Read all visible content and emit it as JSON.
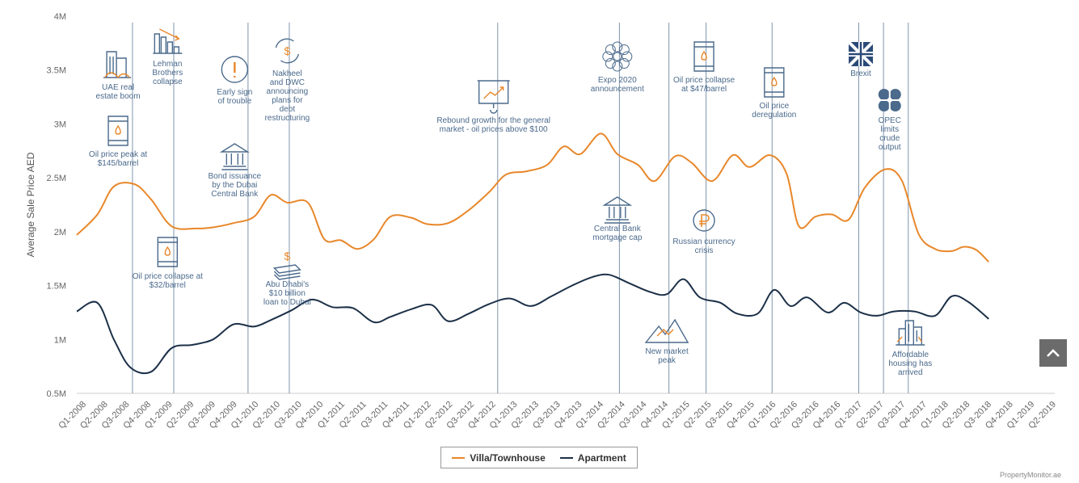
{
  "chart_data": {
    "type": "line",
    "ylabel": "Average Sale Price AED",
    "ylim": [
      500000,
      4000000
    ],
    "yticks": [
      {
        "value": 500000,
        "label": "0.5M"
      },
      {
        "value": 1000000,
        "label": "1M"
      },
      {
        "value": 1500000,
        "label": "1.5M"
      },
      {
        "value": 2000000,
        "label": "2M"
      },
      {
        "value": 2500000,
        "label": "2.5M"
      },
      {
        "value": 3000000,
        "label": "3M"
      },
      {
        "value": 3500000,
        "label": "3.5M"
      },
      {
        "value": 4000000,
        "label": "4M"
      }
    ],
    "categories": [
      "Q1-2008",
      "Q2-2008",
      "Q3-2008",
      "Q4-2008",
      "Q1-2009",
      "Q2-2009",
      "Q3-2009",
      "Q4-2009",
      "Q1-2010",
      "Q2-2010",
      "Q3-2010",
      "Q4-2010",
      "Q1-2011",
      "Q2-2011",
      "Q3-2011",
      "Q4-2011",
      "Q1-2012",
      "Q2-2012",
      "Q3-2012",
      "Q4-2012",
      "Q1-2013",
      "Q2-2013",
      "Q3-2013",
      "Q4-2013",
      "Q1-2014",
      "Q2-2014",
      "Q3-2014",
      "Q4-2014",
      "Q1-2015",
      "Q2-2015",
      "Q3-2015",
      "Q4-2015",
      "Q1-2016",
      "Q2-2016",
      "Q3-2016",
      "Q4-2016",
      "Q1-2017",
      "Q2-2017",
      "Q3-2017",
      "Q4-2017",
      "Q1-2018",
      "Q2-2018",
      "Q3-2018",
      "Q4-2018",
      "Q1-2019",
      "Q2-2019"
    ],
    "x_extent": [
      1,
      24.7
    ],
    "series": [
      {
        "name": "Villa/Townhouse",
        "color": "#e8872a",
        "points": [
          [
            1.0,
            1970000
          ],
          [
            1.5,
            2160000
          ],
          [
            1.9,
            2420000
          ],
          [
            2.4,
            2440000
          ],
          [
            2.8,
            2300000
          ],
          [
            3.3,
            2050000
          ],
          [
            3.9,
            2030000
          ],
          [
            4.3,
            2040000
          ],
          [
            4.8,
            2080000
          ],
          [
            5.3,
            2140000
          ],
          [
            5.7,
            2340000
          ],
          [
            6.1,
            2270000
          ],
          [
            6.6,
            2270000
          ],
          [
            7.0,
            1930000
          ],
          [
            7.4,
            1920000
          ],
          [
            7.8,
            1840000
          ],
          [
            8.2,
            1930000
          ],
          [
            8.6,
            2140000
          ],
          [
            9.1,
            2130000
          ],
          [
            9.5,
            2070000
          ],
          [
            10.0,
            2080000
          ],
          [
            10.5,
            2200000
          ],
          [
            11.0,
            2370000
          ],
          [
            11.4,
            2530000
          ],
          [
            11.9,
            2560000
          ],
          [
            12.4,
            2620000
          ],
          [
            12.8,
            2790000
          ],
          [
            13.2,
            2720000
          ],
          [
            13.7,
            2910000
          ],
          [
            14.1,
            2720000
          ],
          [
            14.6,
            2620000
          ],
          [
            15.0,
            2470000
          ],
          [
            15.5,
            2700000
          ],
          [
            15.9,
            2640000
          ],
          [
            16.4,
            2470000
          ],
          [
            16.9,
            2710000
          ],
          [
            17.3,
            2600000
          ],
          [
            17.8,
            2710000
          ],
          [
            18.2,
            2540000
          ],
          [
            18.5,
            2050000
          ],
          [
            18.9,
            2140000
          ],
          [
            19.3,
            2160000
          ],
          [
            19.7,
            2110000
          ],
          [
            20.1,
            2410000
          ],
          [
            20.6,
            2580000
          ],
          [
            21.0,
            2470000
          ],
          [
            21.4,
            1980000
          ],
          [
            21.8,
            1840000
          ],
          [
            22.2,
            1820000
          ],
          [
            22.5,
            1860000
          ],
          [
            22.8,
            1830000
          ],
          [
            23.1,
            1720000
          ]
        ]
      },
      {
        "name": "Apartment",
        "color": "#1c3048",
        "points": [
          [
            1.0,
            1260000
          ],
          [
            1.5,
            1340000
          ],
          [
            1.9,
            1000000
          ],
          [
            2.3,
            740000
          ],
          [
            2.8,
            700000
          ],
          [
            3.3,
            920000
          ],
          [
            3.8,
            950000
          ],
          [
            4.3,
            1000000
          ],
          [
            4.8,
            1140000
          ],
          [
            5.3,
            1120000
          ],
          [
            5.7,
            1180000
          ],
          [
            6.2,
            1270000
          ],
          [
            6.7,
            1370000
          ],
          [
            7.2,
            1300000
          ],
          [
            7.7,
            1290000
          ],
          [
            8.2,
            1160000
          ],
          [
            8.6,
            1210000
          ],
          [
            9.1,
            1280000
          ],
          [
            9.6,
            1320000
          ],
          [
            10.0,
            1170000
          ],
          [
            10.5,
            1240000
          ],
          [
            11.0,
            1330000
          ],
          [
            11.5,
            1380000
          ],
          [
            12.0,
            1310000
          ],
          [
            12.5,
            1400000
          ],
          [
            13.0,
            1500000
          ],
          [
            13.5,
            1580000
          ],
          [
            13.9,
            1600000
          ],
          [
            14.4,
            1520000
          ],
          [
            14.9,
            1440000
          ],
          [
            15.3,
            1420000
          ],
          [
            15.7,
            1560000
          ],
          [
            16.1,
            1390000
          ],
          [
            16.6,
            1340000
          ],
          [
            17.0,
            1240000
          ],
          [
            17.5,
            1240000
          ],
          [
            17.9,
            1460000
          ],
          [
            18.3,
            1310000
          ],
          [
            18.7,
            1390000
          ],
          [
            19.2,
            1250000
          ],
          [
            19.6,
            1340000
          ],
          [
            20.0,
            1250000
          ],
          [
            20.4,
            1220000
          ],
          [
            20.8,
            1260000
          ],
          [
            21.3,
            1260000
          ],
          [
            21.8,
            1220000
          ],
          [
            22.2,
            1400000
          ],
          [
            22.6,
            1350000
          ],
          [
            23.1,
            1190000
          ]
        ]
      }
    ],
    "annotations": [
      {
        "text": "UAE real estate boom",
        "icon": "buildings-icon",
        "x": 2.0
      },
      {
        "text": "Lehman Brothers collapse",
        "icon": "bar-chart-down-icon",
        "x": 3.2
      },
      {
        "text": "Oil price peak at $145/barrel",
        "icon": "oil-barrel-icon",
        "x": 2.0
      },
      {
        "text": "Oil price collapse at $32/barrel",
        "icon": "oil-barrel-icon",
        "x": 3.2
      },
      {
        "text": "Early sign of trouble",
        "icon": "exclamation-icon",
        "x": 5.1
      },
      {
        "text": "Nakheel and DWC announcing plans for debt restructuring",
        "icon": "dollar-cycle-icon",
        "x": 6.1
      },
      {
        "text": "Bond issuance by the Dubai Central Bank",
        "icon": "bank-icon",
        "x": 5.1
      },
      {
        "text": "Abu Dhabi's $10 billion loan to Dubai",
        "icon": "money-stack-icon",
        "x": 6.1
      },
      {
        "text": "Rebound growth for the general market - oil prices above $100",
        "icon": "presentation-chart-icon",
        "x": 11.1
      },
      {
        "text": "Expo 2020 announcement",
        "icon": "expo-logo-icon",
        "x": 14.1
      },
      {
        "text": "Central Bank mortgage cap",
        "icon": "bank-icon",
        "x": 14.1
      },
      {
        "text": "New market peak",
        "icon": "mountain-peak-icon",
        "x": 15.3
      },
      {
        "text": "Oil price collapse at $47/barrel",
        "icon": "oil-barrel-icon",
        "x": 16.2
      },
      {
        "text": "Russian currency crisis",
        "icon": "ruble-icon",
        "x": 16.2
      },
      {
        "text": "Oil price deregulation",
        "icon": "oil-barrel-icon",
        "x": 17.9
      },
      {
        "text": "Brexit",
        "icon": "uk-flag-icon",
        "x": 20.0
      },
      {
        "text": "OPEC limits crude output",
        "icon": "opec-logo-icon",
        "x": 20.7
      },
      {
        "text": "Affordable housing has arrived",
        "icon": "city-icon",
        "x": 21.2
      }
    ],
    "event_lines": [
      2.35,
      3.35,
      5.15,
      6.15,
      11.2,
      14.15,
      15.35,
      16.25,
      17.85,
      19.95,
      20.55,
      21.15
    ]
  },
  "legend": {
    "villa_label": "Villa/Townhouse",
    "apartment_label": "Apartment",
    "villa_color": "#e8872a",
    "apartment_color": "#1c3048"
  },
  "credit": "PropertyMonitor.ae"
}
